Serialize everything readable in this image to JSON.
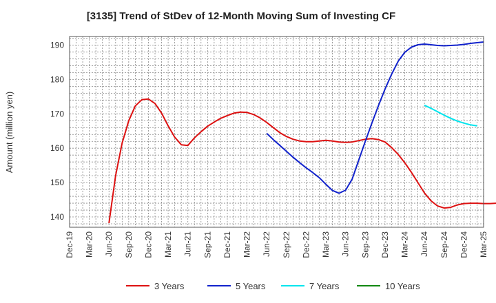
{
  "chart_data": {
    "type": "line",
    "title": "[3135]  Trend of StDev of 12-Month Moving Sum of Investing CF",
    "ylabel": "Amount (million yen)",
    "xlabel": "",
    "ylim": [
      137,
      192.5
    ],
    "yticks": [
      140,
      150,
      160,
      170,
      180,
      190
    ],
    "xticks": [
      "Dec-19",
      "Mar-20",
      "Jun-20",
      "Sep-20",
      "Dec-20",
      "Mar-21",
      "Jun-21",
      "Sep-21",
      "Dec-21",
      "Mar-22",
      "Jun-22",
      "Sep-22",
      "Dec-22",
      "Mar-23",
      "Jun-23",
      "Sep-23",
      "Dec-23",
      "Mar-24",
      "Jun-24",
      "Sep-24",
      "Dec-24",
      "Mar-25"
    ],
    "grid": true,
    "legend_position": "bottom",
    "series": [
      {
        "name": "3 Years",
        "color": "#dd1111",
        "points": [
          [
            6,
            138.2
          ],
          [
            7,
            152
          ],
          [
            8,
            161.5
          ],
          [
            9,
            168
          ],
          [
            10,
            172.3
          ],
          [
            11,
            174.1
          ],
          [
            12,
            174.3
          ],
          [
            13,
            173
          ],
          [
            14,
            170.2
          ],
          [
            15,
            166.5
          ],
          [
            16,
            163.2
          ],
          [
            17,
            161
          ],
          [
            18,
            160.8
          ],
          [
            19,
            163
          ],
          [
            20,
            164.8
          ],
          [
            21,
            166.4
          ],
          [
            22,
            167.6
          ],
          [
            23,
            168.7
          ],
          [
            24,
            169.5
          ],
          [
            25,
            170.2
          ],
          [
            26,
            170.5
          ],
          [
            27,
            170.4
          ],
          [
            28,
            169.8
          ],
          [
            29,
            168.8
          ],
          [
            30,
            167.5
          ],
          [
            31,
            166
          ],
          [
            32,
            164.5
          ],
          [
            33,
            163.4
          ],
          [
            34,
            162.6
          ],
          [
            35,
            162.1
          ],
          [
            36,
            161.9
          ],
          [
            37,
            161.9
          ],
          [
            38,
            162.1
          ],
          [
            39,
            162.3
          ],
          [
            40,
            162.1
          ],
          [
            41,
            161.8
          ],
          [
            42,
            161.7
          ],
          [
            43,
            161.8
          ],
          [
            44,
            162.2
          ],
          [
            45,
            162.6
          ],
          [
            46,
            162.8
          ],
          [
            47,
            162.5
          ],
          [
            48,
            161.8
          ],
          [
            49,
            160.2
          ],
          [
            50,
            158.2
          ],
          [
            51,
            155.8
          ],
          [
            52,
            153
          ],
          [
            53,
            150
          ],
          [
            54,
            147
          ],
          [
            55,
            144.7
          ],
          [
            56,
            143.2
          ],
          [
            57,
            142.6
          ],
          [
            58,
            142.8
          ],
          [
            59,
            143.5
          ],
          [
            60,
            143.9
          ],
          [
            61,
            144
          ],
          [
            62,
            144
          ],
          [
            63,
            143.9
          ],
          [
            64,
            143.9
          ],
          [
            65,
            144
          ]
        ]
      },
      {
        "name": "5 Years",
        "color": "#1122cc",
        "points": [
          [
            30,
            164.3
          ],
          [
            31,
            162.5
          ],
          [
            32,
            160.8
          ],
          [
            33,
            159.1
          ],
          [
            34,
            157.4
          ],
          [
            35,
            155.8
          ],
          [
            36,
            154.3
          ],
          [
            37,
            152.9
          ],
          [
            38,
            151.4
          ],
          [
            39,
            149.5
          ],
          [
            40,
            147.7
          ],
          [
            41,
            146.9
          ],
          [
            42,
            147.8
          ],
          [
            43,
            151
          ],
          [
            44,
            156.5
          ],
          [
            45,
            162
          ],
          [
            46,
            167.3
          ],
          [
            47,
            172.4
          ],
          [
            48,
            177.2
          ],
          [
            49,
            181.5
          ],
          [
            50,
            185.3
          ],
          [
            51,
            187.9
          ],
          [
            52,
            189.4
          ],
          [
            53,
            190.1
          ],
          [
            54,
            190.3
          ],
          [
            55,
            190.1
          ],
          [
            56,
            189.9
          ],
          [
            57,
            189.8
          ],
          [
            58,
            189.9
          ],
          [
            59,
            190
          ],
          [
            60,
            190.2
          ],
          [
            61,
            190.5
          ],
          [
            62,
            190.7
          ],
          [
            63,
            190.9
          ]
        ]
      },
      {
        "name": "7 Years",
        "color": "#00e5ee",
        "points": [
          [
            54,
            172.5
          ],
          [
            55,
            171.6
          ],
          [
            56,
            170.6
          ],
          [
            57,
            169.6
          ],
          [
            58,
            168.7
          ],
          [
            59,
            167.9
          ],
          [
            60,
            167.3
          ],
          [
            61,
            166.8
          ],
          [
            62,
            166.5
          ]
        ]
      },
      {
        "name": "10 Years",
        "color": "#118811",
        "points": []
      }
    ]
  }
}
